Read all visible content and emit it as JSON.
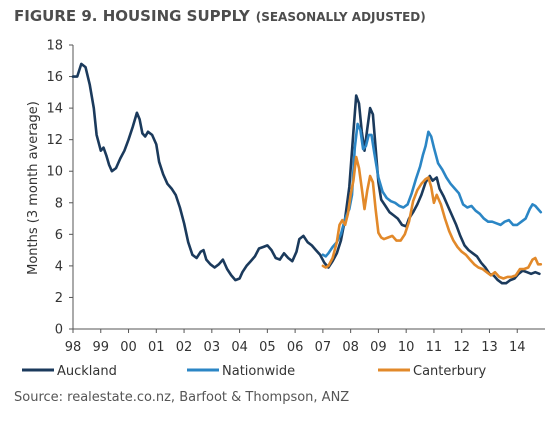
{
  "title": "FIGURE 9. HOUSING SUPPLY",
  "subtitle": "(SEASONALLY ADJUSTED)",
  "source": "Source: realestate.co.nz, Barfoot & Thompson, ANZ",
  "chart_data": {
    "type": "line",
    "title": "FIGURE 9. HOUSING SUPPLY",
    "subtitle": "(SEASONALLY ADJUSTED)",
    "xlabel": "",
    "ylabel": "Months (3 month average)",
    "xlim": [
      1998.0,
      2015.0
    ],
    "ylim": [
      0,
      18
    ],
    "y_ticks": [
      0,
      2,
      4,
      6,
      8,
      10,
      12,
      14,
      16,
      18
    ],
    "x_tick_positions": [
      1998,
      1999,
      2000,
      2001,
      2002,
      2003,
      2004,
      2005,
      2006,
      2007,
      2008,
      2009,
      2010,
      2011,
      2012,
      2013,
      2014
    ],
    "x_tick_labels": [
      "98",
      "99",
      "00",
      "01",
      "02",
      "03",
      "04",
      "05",
      "06",
      "07",
      "08",
      "09",
      "10",
      "11",
      "12",
      "13",
      "14"
    ],
    "grid": false,
    "legend": "bottom",
    "series": [
      {
        "name": "Auckland",
        "color": "#1b3a5c",
        "points": [
          [
            1998.0,
            16.0
          ],
          [
            1998.15,
            16.0
          ],
          [
            1998.3,
            16.8
          ],
          [
            1998.45,
            16.6
          ],
          [
            1998.6,
            15.5
          ],
          [
            1998.75,
            14.0
          ],
          [
            1998.85,
            12.3
          ],
          [
            1999.0,
            11.3
          ],
          [
            1999.1,
            11.5
          ],
          [
            1999.2,
            11.0
          ],
          [
            1999.3,
            10.4
          ],
          [
            1999.4,
            10.0
          ],
          [
            1999.55,
            10.2
          ],
          [
            1999.7,
            10.8
          ],
          [
            1999.85,
            11.3
          ],
          [
            2000.0,
            12.0
          ],
          [
            2000.15,
            12.8
          ],
          [
            2000.3,
            13.7
          ],
          [
            2000.4,
            13.3
          ],
          [
            2000.5,
            12.4
          ],
          [
            2000.6,
            12.2
          ],
          [
            2000.7,
            12.5
          ],
          [
            2000.85,
            12.3
          ],
          [
            2001.0,
            11.7
          ],
          [
            2001.1,
            10.6
          ],
          [
            2001.25,
            9.8
          ],
          [
            2001.4,
            9.2
          ],
          [
            2001.55,
            8.9
          ],
          [
            2001.7,
            8.5
          ],
          [
            2001.85,
            7.7
          ],
          [
            2002.0,
            6.7
          ],
          [
            2002.15,
            5.5
          ],
          [
            2002.3,
            4.7
          ],
          [
            2002.45,
            4.5
          ],
          [
            2002.6,
            4.9
          ],
          [
            2002.7,
            5.0
          ],
          [
            2002.8,
            4.4
          ],
          [
            2002.95,
            4.1
          ],
          [
            2003.1,
            3.9
          ],
          [
            2003.25,
            4.1
          ],
          [
            2003.4,
            4.4
          ],
          [
            2003.55,
            3.8
          ],
          [
            2003.7,
            3.4
          ],
          [
            2003.85,
            3.1
          ],
          [
            2004.0,
            3.2
          ],
          [
            2004.1,
            3.6
          ],
          [
            2004.25,
            4.0
          ],
          [
            2004.4,
            4.3
          ],
          [
            2004.55,
            4.6
          ],
          [
            2004.7,
            5.1
          ],
          [
            2004.85,
            5.2
          ],
          [
            2005.0,
            5.3
          ],
          [
            2005.15,
            5.0
          ],
          [
            2005.3,
            4.5
          ],
          [
            2005.45,
            4.4
          ],
          [
            2005.6,
            4.8
          ],
          [
            2005.75,
            4.5
          ],
          [
            2005.9,
            4.3
          ],
          [
            2006.05,
            4.9
          ],
          [
            2006.15,
            5.7
          ],
          [
            2006.3,
            5.9
          ],
          [
            2006.45,
            5.5
          ],
          [
            2006.6,
            5.3
          ],
          [
            2006.75,
            5.0
          ],
          [
            2006.9,
            4.7
          ],
          [
            2007.05,
            4.2
          ],
          [
            2007.2,
            3.9
          ],
          [
            2007.35,
            4.3
          ],
          [
            2007.5,
            4.8
          ],
          [
            2007.65,
            5.6
          ],
          [
            2007.8,
            7.0
          ],
          [
            2007.95,
            9.0
          ],
          [
            2008.1,
            12.5
          ],
          [
            2008.2,
            14.8
          ],
          [
            2008.3,
            14.3
          ],
          [
            2008.4,
            12.5
          ],
          [
            2008.5,
            11.3
          ],
          [
            2008.6,
            12.7
          ],
          [
            2008.7,
            14.0
          ],
          [
            2008.8,
            13.6
          ],
          [
            2008.9,
            11.5
          ],
          [
            2009.0,
            9.3
          ],
          [
            2009.1,
            8.2
          ],
          [
            2009.25,
            7.8
          ],
          [
            2009.4,
            7.4
          ],
          [
            2009.55,
            7.2
          ],
          [
            2009.7,
            7.0
          ],
          [
            2009.85,
            6.6
          ],
          [
            2010.0,
            6.5
          ],
          [
            2010.1,
            7.0
          ],
          [
            2010.25,
            7.4
          ],
          [
            2010.4,
            7.9
          ],
          [
            2010.55,
            8.5
          ],
          [
            2010.7,
            9.3
          ],
          [
            2010.85,
            9.7
          ],
          [
            2010.95,
            9.4
          ],
          [
            2011.1,
            9.6
          ],
          [
            2011.2,
            8.9
          ],
          [
            2011.35,
            8.4
          ],
          [
            2011.5,
            7.8
          ],
          [
            2011.65,
            7.2
          ],
          [
            2011.8,
            6.6
          ],
          [
            2011.95,
            5.9
          ],
          [
            2012.1,
            5.3
          ],
          [
            2012.25,
            5.0
          ],
          [
            2012.4,
            4.8
          ],
          [
            2012.55,
            4.6
          ],
          [
            2012.7,
            4.2
          ],
          [
            2012.85,
            3.9
          ],
          [
            2013.0,
            3.5
          ],
          [
            2013.15,
            3.4
          ],
          [
            2013.3,
            3.1
          ],
          [
            2013.45,
            2.9
          ],
          [
            2013.6,
            2.9
          ],
          [
            2013.75,
            3.1
          ],
          [
            2013.9,
            3.2
          ],
          [
            2014.05,
            3.5
          ],
          [
            2014.2,
            3.7
          ],
          [
            2014.35,
            3.6
          ],
          [
            2014.5,
            3.5
          ],
          [
            2014.65,
            3.6
          ],
          [
            2014.8,
            3.5
          ]
        ]
      },
      {
        "name": "Nationwide",
        "color": "#2b86c5",
        "points": [
          [
            2007.0,
            4.7
          ],
          [
            2007.1,
            4.6
          ],
          [
            2007.2,
            4.8
          ],
          [
            2007.35,
            5.2
          ],
          [
            2007.5,
            5.5
          ],
          [
            2007.65,
            6.0
          ],
          [
            2007.8,
            7.0
          ],
          [
            2007.95,
            7.6
          ],
          [
            2008.05,
            8.5
          ],
          [
            2008.15,
            11.5
          ],
          [
            2008.25,
            13.0
          ],
          [
            2008.35,
            12.6
          ],
          [
            2008.45,
            11.4
          ],
          [
            2008.55,
            11.6
          ],
          [
            2008.65,
            12.3
          ],
          [
            2008.75,
            12.3
          ],
          [
            2008.85,
            11.2
          ],
          [
            2009.0,
            9.6
          ],
          [
            2009.15,
            8.7
          ],
          [
            2009.3,
            8.3
          ],
          [
            2009.45,
            8.1
          ],
          [
            2009.6,
            8.0
          ],
          [
            2009.75,
            7.8
          ],
          [
            2009.9,
            7.7
          ],
          [
            2010.05,
            7.9
          ],
          [
            2010.2,
            8.6
          ],
          [
            2010.35,
            9.5
          ],
          [
            2010.5,
            10.3
          ],
          [
            2010.6,
            11.0
          ],
          [
            2010.7,
            11.6
          ],
          [
            2010.8,
            12.5
          ],
          [
            2010.9,
            12.2
          ],
          [
            2011.0,
            11.5
          ],
          [
            2011.15,
            10.5
          ],
          [
            2011.3,
            10.1
          ],
          [
            2011.45,
            9.6
          ],
          [
            2011.6,
            9.2
          ],
          [
            2011.75,
            8.9
          ],
          [
            2011.9,
            8.6
          ],
          [
            2012.05,
            7.9
          ],
          [
            2012.2,
            7.7
          ],
          [
            2012.35,
            7.8
          ],
          [
            2012.5,
            7.5
          ],
          [
            2012.65,
            7.3
          ],
          [
            2012.8,
            7.0
          ],
          [
            2012.95,
            6.8
          ],
          [
            2013.1,
            6.8
          ],
          [
            2013.25,
            6.7
          ],
          [
            2013.4,
            6.6
          ],
          [
            2013.55,
            6.8
          ],
          [
            2013.7,
            6.9
          ],
          [
            2013.85,
            6.6
          ],
          [
            2014.0,
            6.6
          ],
          [
            2014.15,
            6.8
          ],
          [
            2014.3,
            7.0
          ],
          [
            2014.45,
            7.6
          ],
          [
            2014.55,
            7.9
          ],
          [
            2014.65,
            7.8
          ],
          [
            2014.75,
            7.6
          ],
          [
            2014.85,
            7.4
          ]
        ]
      },
      {
        "name": "Canterbury",
        "color": "#e2892a",
        "points": [
          [
            2007.0,
            4.0
          ],
          [
            2007.1,
            3.9
          ],
          [
            2007.2,
            4.0
          ],
          [
            2007.35,
            4.5
          ],
          [
            2007.5,
            5.5
          ],
          [
            2007.6,
            6.6
          ],
          [
            2007.7,
            6.9
          ],
          [
            2007.8,
            6.6
          ],
          [
            2007.9,
            7.3
          ],
          [
            2008.0,
            8.5
          ],
          [
            2008.1,
            9.4
          ],
          [
            2008.2,
            10.9
          ],
          [
            2008.3,
            10.2
          ],
          [
            2008.4,
            8.9
          ],
          [
            2008.5,
            7.6
          ],
          [
            2008.6,
            8.8
          ],
          [
            2008.7,
            9.7
          ],
          [
            2008.8,
            9.3
          ],
          [
            2008.9,
            7.6
          ],
          [
            2009.0,
            6.1
          ],
          [
            2009.1,
            5.8
          ],
          [
            2009.2,
            5.7
          ],
          [
            2009.35,
            5.8
          ],
          [
            2009.5,
            5.9
          ],
          [
            2009.65,
            5.6
          ],
          [
            2009.8,
            5.6
          ],
          [
            2009.95,
            6.0
          ],
          [
            2010.1,
            6.8
          ],
          [
            2010.25,
            8.1
          ],
          [
            2010.4,
            8.8
          ],
          [
            2010.55,
            9.2
          ],
          [
            2010.7,
            9.5
          ],
          [
            2010.8,
            9.6
          ],
          [
            2010.9,
            9.0
          ],
          [
            2011.0,
            8.0
          ],
          [
            2011.1,
            8.5
          ],
          [
            2011.25,
            7.9
          ],
          [
            2011.4,
            7.0
          ],
          [
            2011.55,
            6.2
          ],
          [
            2011.7,
            5.6
          ],
          [
            2011.85,
            5.2
          ],
          [
            2012.0,
            4.9
          ],
          [
            2012.15,
            4.7
          ],
          [
            2012.3,
            4.4
          ],
          [
            2012.45,
            4.1
          ],
          [
            2012.6,
            3.9
          ],
          [
            2012.75,
            3.8
          ],
          [
            2012.9,
            3.6
          ],
          [
            2013.05,
            3.4
          ],
          [
            2013.2,
            3.6
          ],
          [
            2013.35,
            3.3
          ],
          [
            2013.5,
            3.2
          ],
          [
            2013.65,
            3.3
          ],
          [
            2013.8,
            3.3
          ],
          [
            2013.95,
            3.4
          ],
          [
            2014.1,
            3.8
          ],
          [
            2014.25,
            3.8
          ],
          [
            2014.4,
            3.9
          ],
          [
            2014.55,
            4.4
          ],
          [
            2014.65,
            4.5
          ],
          [
            2014.75,
            4.1
          ],
          [
            2014.85,
            4.1
          ]
        ]
      }
    ]
  }
}
